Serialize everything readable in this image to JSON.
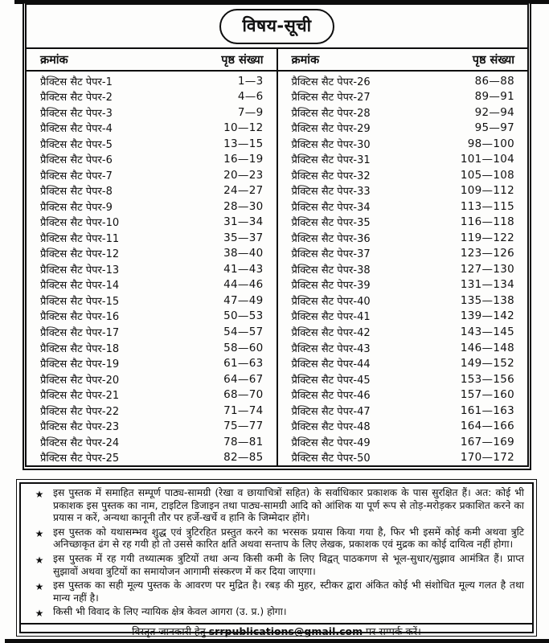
{
  "header": {
    "title": "विषय-सूची"
  },
  "toc": {
    "col_header_serial": "क्रमांक",
    "col_header_pages": "पृष्ठ संख्या",
    "left_entries": [
      {
        "label": "प्रैक्टिस सैट पेपर-1",
        "pages": "1—3"
      },
      {
        "label": "प्रैक्टिस सैट पेपर-2",
        "pages": "4—6"
      },
      {
        "label": "प्रैक्टिस सैट पेपर-3",
        "pages": "7—9"
      },
      {
        "label": "प्रैक्टिस सैट पेपर-4",
        "pages": "10—12"
      },
      {
        "label": "प्रैक्टिस सैट पेपर-5",
        "pages": "13—15"
      },
      {
        "label": "प्रैक्टिस सैट पेपर-6",
        "pages": "16—19"
      },
      {
        "label": "प्रैक्टिस सैट पेपर-7",
        "pages": "20—23"
      },
      {
        "label": "प्रैक्टिस सैट पेपर-8",
        "pages": "24—27"
      },
      {
        "label": "प्रैक्टिस सैट पेपर-9",
        "pages": "28—30"
      },
      {
        "label": "प्रैक्टिस सैट पेपर-10",
        "pages": "31—34"
      },
      {
        "label": "प्रैक्टिस सैट पेपर-11",
        "pages": "35—37"
      },
      {
        "label": "प्रैक्टिस सैट पेपर-12",
        "pages": "38—40"
      },
      {
        "label": "प्रैक्टिस सैट पेपर-13",
        "pages": "41—43"
      },
      {
        "label": "प्रैक्टिस सैट पेपर-14",
        "pages": "44—46"
      },
      {
        "label": "प्रैक्टिस सैट पेपर-15",
        "pages": "47—49"
      },
      {
        "label": "प्रैक्टिस सैट पेपर-16",
        "pages": "50—53"
      },
      {
        "label": "प्रैक्टिस सैट पेपर-17",
        "pages": "54—57"
      },
      {
        "label": "प्रैक्टिस सैट पेपर-18",
        "pages": "58—60"
      },
      {
        "label": "प्रैक्टिस सैट पेपर-19",
        "pages": "61—63"
      },
      {
        "label": "प्रैक्टिस सैट पेपर-20",
        "pages": "64—67"
      },
      {
        "label": "प्रैक्टिस सैट पेपर-21",
        "pages": "68—70"
      },
      {
        "label": "प्रैक्टिस सैट पेपर-22",
        "pages": "71—74"
      },
      {
        "label": "प्रैक्टिस सैट पेपर-23",
        "pages": "75—77"
      },
      {
        "label": "प्रैक्टिस सैट पेपर-24",
        "pages": "78—81"
      },
      {
        "label": "प्रैक्टिस सैट पेपर-25",
        "pages": "82—85"
      }
    ],
    "right_entries": [
      {
        "label": "प्रैक्टिस सैट पेपर-26",
        "pages": "86—88"
      },
      {
        "label": "प्रैक्टिस सैट पेपर-27",
        "pages": "89—91"
      },
      {
        "label": "प्रैक्टिस सैट पेपर-28",
        "pages": "92—94"
      },
      {
        "label": "प्रैक्टिस सैट पेपर-29",
        "pages": "95—97"
      },
      {
        "label": "प्रैक्टिस सैट पेपर-30",
        "pages": "98—100"
      },
      {
        "label": "प्रैक्टिस सैट पेपर-31",
        "pages": "101—104"
      },
      {
        "label": "प्रैक्टिस सैट पेपर-32",
        "pages": "105—108"
      },
      {
        "label": "प्रैक्टिस सैट पेपर-33",
        "pages": "109—112"
      },
      {
        "label": "प्रैक्टिस सैट पेपर-34",
        "pages": "113—115"
      },
      {
        "label": "प्रैक्टिस सैट पेपर-35",
        "pages": "116—118"
      },
      {
        "label": "प्रैक्टिस सैट पेपर-36",
        "pages": "119—122"
      },
      {
        "label": "प्रैक्टिस सैट पेपर-37",
        "pages": "123—126"
      },
      {
        "label": "प्रैक्टिस सैट पेपर-38",
        "pages": "127—130"
      },
      {
        "label": "प्रैक्टिस सैट पेपर-39",
        "pages": "131—134"
      },
      {
        "label": "प्रैक्टिस सैट पेपर-40",
        "pages": "135—138"
      },
      {
        "label": "प्रैक्टिस सैट पेपर-41",
        "pages": "139—142"
      },
      {
        "label": "प्रैक्टिस सैट पेपर-42",
        "pages": "143—145"
      },
      {
        "label": "प्रैक्टिस सैट पेपर-43",
        "pages": "146—148"
      },
      {
        "label": "प्रैक्टिस सैट पेपर-44",
        "pages": "149—152"
      },
      {
        "label": "प्रैक्टिस सैट पेपर-45",
        "pages": "153—156"
      },
      {
        "label": "प्रैक्टिस सैट पेपर-46",
        "pages": "157—160"
      },
      {
        "label": "प्रैक्टिस सैट पेपर-47",
        "pages": "161—163"
      },
      {
        "label": "प्रैक्टिस सैट पेपर-48",
        "pages": "164—166"
      },
      {
        "label": "प्रैक्टिस सैट पेपर-49",
        "pages": "167—169"
      },
      {
        "label": "प्रैक्टिस सैट पेपर-50",
        "pages": "170—172"
      }
    ]
  },
  "notices": {
    "bullet_glyph": "★",
    "items": [
      "इस पुस्तक में समाहित सम्पूर्ण पाठ्य-सामग्री (रेखा व छायाचित्रों सहित) के सर्वाधिकार प्रकाशक के पास सुरक्षित हैं। अत: कोई भी प्रकाशक इस पुस्तक का नाम, टाइटिल डिजाइन तथा पाठ्य-सामग्री आदि को आंशिक या पूर्ण रूप से तोड़-मरोड़कर प्रकाशित करने का प्रयास न करें, अन्यथा कानूनी तौर पर हर्जे-खर्चे व हानि के जिम्मेदार होंगे।",
      "इस पुस्तक को यथासम्भव शुद्ध एवं त्रुटिरहित प्रस्तुत करने का भरसक प्रयास किया गया है, फिर भी इसमें कोई कमी अथवा त्रुटि अनिच्छाकृत ढंग से रह गयी हो तो उससे कारित क्षति अथवा सन्ताप के लिए लेखक, प्रकाशक एवं मुद्रक का कोई दायित्व नहीं होगा।",
      "इस पुस्तक में रह गयी तथ्यात्मक त्रुटियों तथा अन्य किसी कमी के लिए विद्वत् पाठकगण से भूल-सुधार/सुझाव आमंत्रित हैं। प्राप्त सुझावों अथवा त्रुटियों का समायोजन आगामी संस्करण में कर दिया जाएगा।",
      "इस पुस्तक का सही मूल्य पुस्तक के आवरण पर मुद्रित है। रबड़ की मुहर, स्टीकर द्वारा अंकित कोई भी संशोधित मूल्य गलत है तथा मान्य नहीं है।",
      "किसी भी विवाद के लिए न्यायिक क्षेत्र केवल आगरा (उ. प्र.) होगा।"
    ],
    "footer": {
      "prefix": "विस्तृत जानकारी हेतु",
      "email": "srrpublications@gmail.com",
      "suffix": "पर सम्पर्क करें।"
    }
  },
  "colors": {
    "background": "#fdfdfc",
    "text": "#111111",
    "border": "#0d0d0d"
  }
}
